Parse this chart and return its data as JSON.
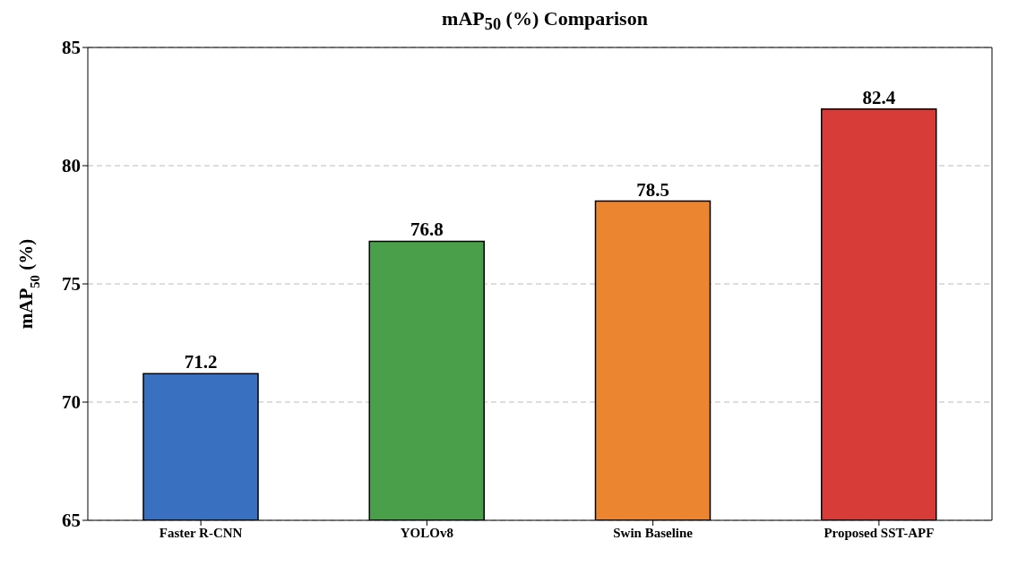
{
  "chart_data": {
    "type": "bar",
    "title": "mAP$_{50}$ (%) Comparison",
    "ylabel": "mAP$_{50}$ (%)",
    "categories": [
      "Faster R-CNN",
      "YOLOv8",
      "Swin Baseline",
      "Proposed SST-APF"
    ],
    "values": [
      71.2,
      76.8,
      78.5,
      82.4
    ],
    "colors": [
      "#3a70c0",
      "#4aa04a",
      "#ec8530",
      "#d83c38"
    ],
    "ylim": [
      65,
      85
    ],
    "yticks": [
      65,
      70,
      75,
      80,
      85
    ],
    "grid": "y",
    "data_labels": true
  }
}
